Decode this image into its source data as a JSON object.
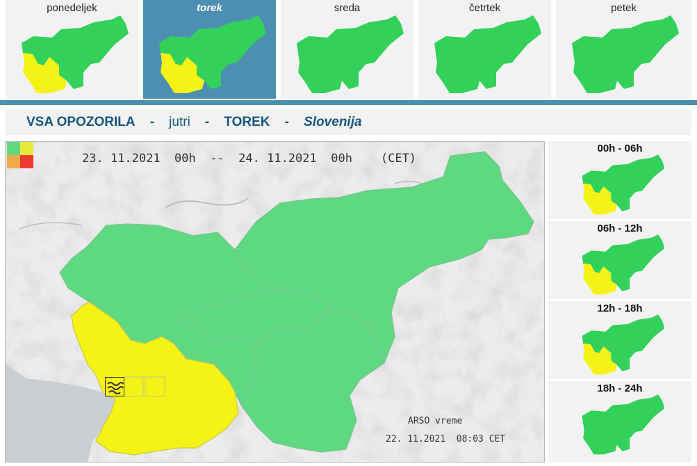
{
  "days": [
    {
      "label": "ponedeljek",
      "active": false,
      "alert": "yellow"
    },
    {
      "label": "torek",
      "active": true,
      "alert": "yellow"
    },
    {
      "label": "sreda",
      "active": false,
      "alert": "none"
    },
    {
      "label": "četrtek",
      "active": false,
      "alert": "none"
    },
    {
      "label": "petek",
      "active": false,
      "alert": "none"
    }
  ],
  "title": {
    "part1": "VSA OPOZORILA",
    "dash": "-",
    "part2": "jutri",
    "part3": "TOREK",
    "part4": "Slovenija"
  },
  "map": {
    "range": "23. 11.2021  00h  --  24. 11.2021  00h    (CET)",
    "credit": "ARSO vreme",
    "issued": "22. 11.2021  08:03 CET"
  },
  "periods": [
    {
      "label": "00h - 06h",
      "alert": "yellow"
    },
    {
      "label": "06h - 12h",
      "alert": "yellow"
    },
    {
      "label": "12h - 18h",
      "alert": "yellow"
    },
    {
      "label": "18h - 24h",
      "alert": "none"
    }
  ],
  "colors": {
    "green": "#33d15a",
    "yellow": "#f5f215",
    "orange": "#f2a94a",
    "red": "#ee3a33",
    "legend_green": "#60d97d",
    "legend_yellow": "#e3ec3b",
    "tab_active": "#4d8fb0",
    "title_text": "#17577e"
  },
  "icons": {
    "warning_marker": "wind-warning-icon",
    "legend": "legend-icon"
  }
}
